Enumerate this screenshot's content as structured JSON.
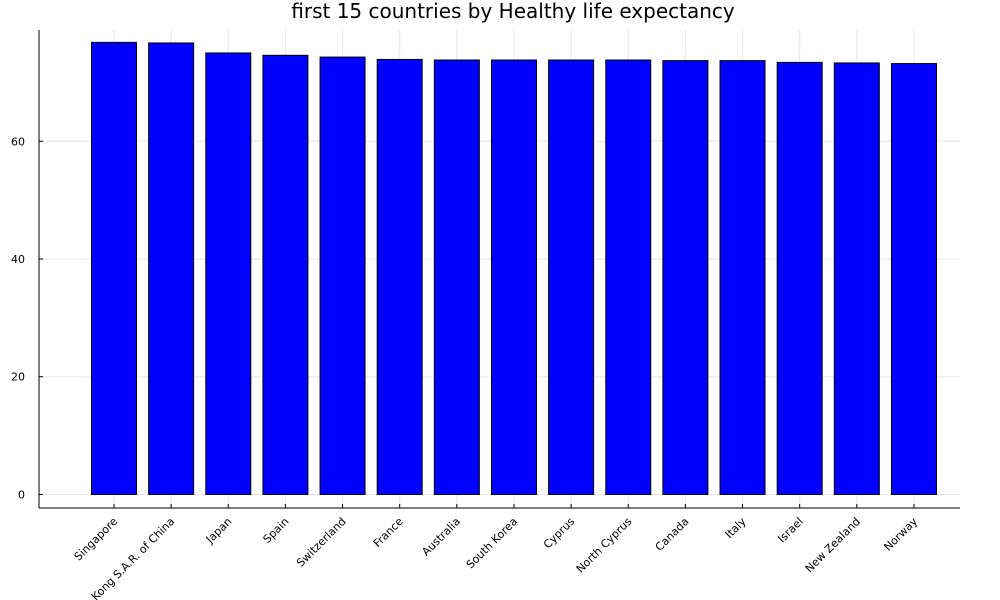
{
  "chart_data": {
    "type": "bar",
    "title": "first 15 countries by Healthy life expectancy",
    "xlabel": "",
    "ylabel": "",
    "categories": [
      "Singapore",
      "Hong Kong S.A.R. of China",
      "Japan",
      "Spain",
      "Switzerland",
      "France",
      "Australia",
      "South Korea",
      "Cyprus",
      "North Cyprus",
      "Canada",
      "Italy",
      "Israel",
      "New Zealand",
      "Norway"
    ],
    "values": [
      76.8,
      76.7,
      75.0,
      74.6,
      74.3,
      73.9,
      73.8,
      73.8,
      73.8,
      73.8,
      73.7,
      73.7,
      73.4,
      73.3,
      73.2
    ],
    "ylim": [
      -2.3,
      78.9
    ],
    "yticks": [
      0,
      20,
      40,
      60
    ],
    "ytick_labels": [
      "0",
      "20",
      "40",
      "60"
    ],
    "grid": true,
    "legend": "none",
    "bar_color": "#0000ff"
  }
}
